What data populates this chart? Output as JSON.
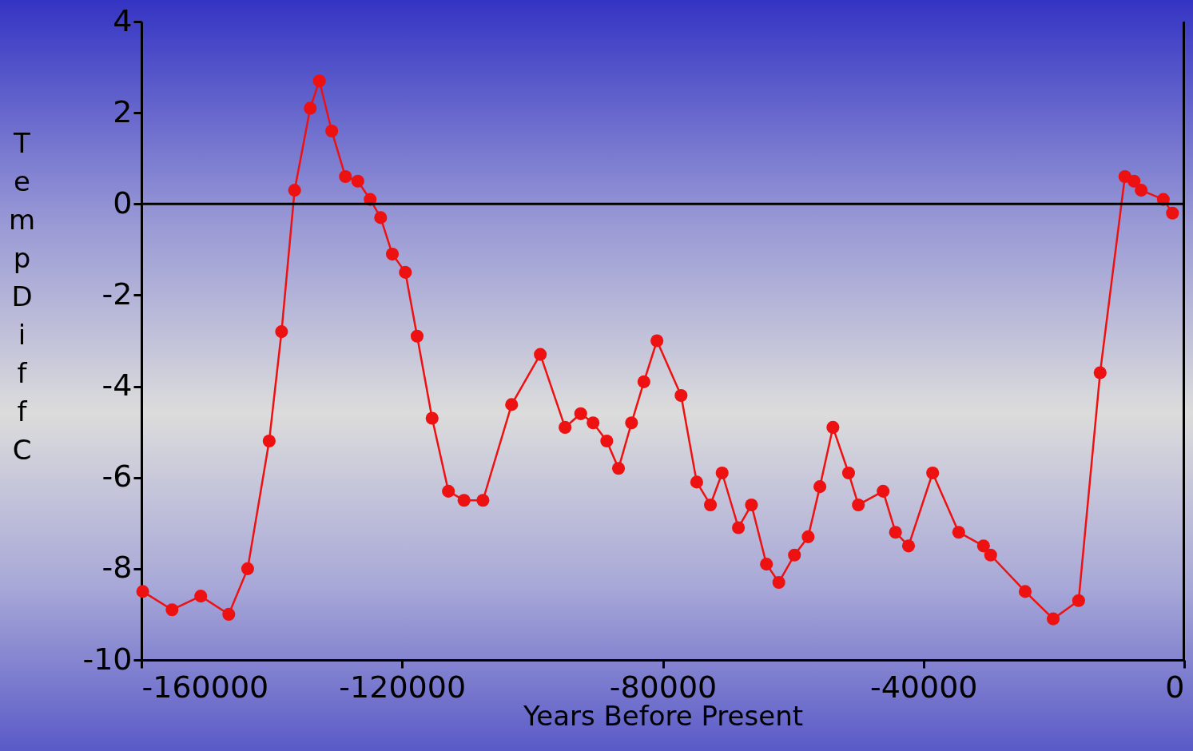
{
  "chart_data": {
    "type": "line",
    "xlabel": "Years Before Present",
    "ylabel": "Temp Diff C",
    "xlim": [
      -160000,
      0
    ],
    "xticks": [
      -160000,
      -120000,
      -80000,
      -40000,
      0
    ],
    "ylim": [
      -10,
      4
    ],
    "yticks": [
      -10,
      -8,
      -6,
      -4,
      -2,
      0,
      2,
      4
    ],
    "grid": false,
    "marker": "circle",
    "line_style": "solid",
    "ref_lines": [
      {
        "axis": "y",
        "value": 0,
        "color": "#000000"
      }
    ],
    "series": [
      {
        "color": "#ee1111",
        "x": [
          -159800,
          -155300,
          -150900,
          -146600,
          -143700,
          -140400,
          -138500,
          -136500,
          -134100,
          -132700,
          -130800,
          -128700,
          -126800,
          -124900,
          -123300,
          -121500,
          -119500,
          -117700,
          -115400,
          -112900,
          -110500,
          -107600,
          -103200,
          -98800,
          -95000,
          -92600,
          -90700,
          -88600,
          -86800,
          -84800,
          -82900,
          -80900,
          -77200,
          -74800,
          -72700,
          -70900,
          -68400,
          -66400,
          -64100,
          -62200,
          -59800,
          -57700,
          -55900,
          -53900,
          -51500,
          -50000,
          -46200,
          -44300,
          -42300,
          -38600,
          -34600,
          -30800,
          -29700,
          -24400,
          -20100,
          -16200,
          -12900,
          -9100,
          -7700,
          -6600,
          -3200,
          -1800
        ],
        "values": [
          -8.5,
          -8.9,
          -8.6,
          -9.0,
          -8.0,
          -5.2,
          -2.8,
          0.3,
          2.1,
          2.7,
          1.6,
          0.6,
          0.5,
          0.1,
          -0.3,
          -1.1,
          -1.5,
          -2.9,
          -4.7,
          -6.3,
          -6.5,
          -6.5,
          -4.4,
          -3.3,
          -4.9,
          -4.6,
          -4.8,
          -5.2,
          -5.8,
          -4.8,
          -3.9,
          -3.0,
          -4.2,
          -6.1,
          -6.6,
          -5.9,
          -7.1,
          -6.6,
          -7.9,
          -8.3,
          -7.7,
          -7.3,
          -6.2,
          -4.9,
          -5.9,
          -6.6,
          -6.3,
          -7.2,
          -7.5,
          -5.9,
          -7.2,
          -7.5,
          -7.7,
          -8.5,
          -9.1,
          -8.7,
          -3.7,
          0.6,
          0.5,
          0.3,
          0.1,
          -0.2
        ]
      }
    ]
  }
}
